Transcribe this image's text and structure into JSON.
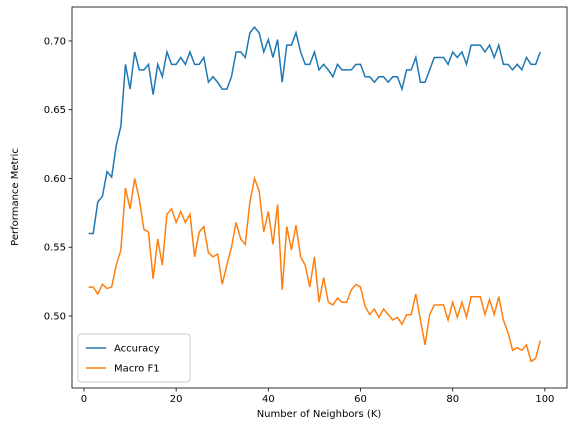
{
  "chart_data": {
    "type": "line",
    "xlabel": "Number of Neighbors (K)",
    "ylabel": "Performance Metric",
    "x": [
      1,
      2,
      3,
      4,
      5,
      6,
      7,
      8,
      9,
      10,
      11,
      12,
      13,
      14,
      15,
      16,
      17,
      18,
      19,
      20,
      21,
      22,
      23,
      24,
      25,
      26,
      27,
      28,
      29,
      30,
      31,
      32,
      33,
      34,
      35,
      36,
      37,
      38,
      39,
      40,
      41,
      42,
      43,
      44,
      45,
      46,
      47,
      48,
      49,
      50,
      51,
      52,
      53,
      54,
      55,
      56,
      57,
      58,
      59,
      60,
      61,
      62,
      63,
      64,
      65,
      66,
      67,
      68,
      69,
      70,
      71,
      72,
      73,
      74,
      75,
      76,
      77,
      78,
      79,
      80,
      81,
      82,
      83,
      84,
      85,
      86,
      87,
      88,
      89,
      90,
      91,
      92,
      93,
      94,
      95,
      96,
      97,
      98,
      99
    ],
    "series": [
      {
        "name": "Accuracy",
        "color": "#1f77b4",
        "values": [
          0.56,
          0.56,
          0.583,
          0.587,
          0.605,
          0.601,
          0.624,
          0.638,
          0.683,
          0.665,
          0.692,
          0.679,
          0.679,
          0.683,
          0.661,
          0.683,
          0.674,
          0.692,
          0.683,
          0.683,
          0.688,
          0.683,
          0.692,
          0.683,
          0.683,
          0.688,
          0.67,
          0.674,
          0.67,
          0.665,
          0.665,
          0.674,
          0.692,
          0.692,
          0.688,
          0.706,
          0.71,
          0.706,
          0.692,
          0.701,
          0.688,
          0.701,
          0.67,
          0.697,
          0.697,
          0.706,
          0.692,
          0.683,
          0.683,
          0.692,
          0.679,
          0.683,
          0.679,
          0.674,
          0.683,
          0.679,
          0.679,
          0.679,
          0.683,
          0.683,
          0.674,
          0.674,
          0.67,
          0.674,
          0.674,
          0.67,
          0.674,
          0.674,
          0.665,
          0.679,
          0.679,
          0.688,
          0.67,
          0.67,
          0.679,
          0.688,
          0.688,
          0.688,
          0.683,
          0.692,
          0.688,
          0.692,
          0.683,
          0.697,
          0.697,
          0.697,
          0.692,
          0.697,
          0.688,
          0.697,
          0.683,
          0.683,
          0.679,
          0.683,
          0.679,
          0.688,
          0.683,
          0.683,
          0.692
        ]
      },
      {
        "name": "Macro F1",
        "color": "#ff7f0e",
        "values": [
          0.521,
          0.521,
          0.516,
          0.523,
          0.52,
          0.521,
          0.537,
          0.548,
          0.593,
          0.578,
          0.6,
          0.585,
          0.563,
          0.561,
          0.527,
          0.556,
          0.537,
          0.574,
          0.578,
          0.568,
          0.576,
          0.568,
          0.574,
          0.543,
          0.561,
          0.565,
          0.546,
          0.543,
          0.545,
          0.523,
          0.537,
          0.55,
          0.568,
          0.556,
          0.552,
          0.583,
          0.6,
          0.591,
          0.561,
          0.576,
          0.552,
          0.581,
          0.519,
          0.565,
          0.548,
          0.566,
          0.543,
          0.537,
          0.521,
          0.543,
          0.51,
          0.528,
          0.51,
          0.508,
          0.513,
          0.51,
          0.51,
          0.519,
          0.523,
          0.521,
          0.507,
          0.501,
          0.505,
          0.499,
          0.505,
          0.501,
          0.497,
          0.499,
          0.494,
          0.501,
          0.501,
          0.516,
          0.497,
          0.479,
          0.501,
          0.508,
          0.508,
          0.508,
          0.497,
          0.51,
          0.499,
          0.51,
          0.499,
          0.514,
          0.514,
          0.514,
          0.501,
          0.512,
          0.501,
          0.514,
          0.497,
          0.488,
          0.475,
          0.477,
          0.475,
          0.479,
          0.467,
          0.469,
          0.482
        ]
      }
    ],
    "xlim": [
      -2.6,
      104.8
    ],
    "xticks": [
      0,
      20,
      40,
      60,
      80,
      100
    ],
    "ylim": [
      0.4476,
      0.7247
    ],
    "yticks": [
      {
        "value": 0.5,
        "label": "0.50"
      },
      {
        "value": 0.55,
        "label": "0.55"
      },
      {
        "value": 0.6,
        "label": "0.60"
      },
      {
        "value": 0.65,
        "label": "0.65"
      },
      {
        "value": 0.7,
        "label": "0.70"
      }
    ],
    "legend": "lower left"
  }
}
